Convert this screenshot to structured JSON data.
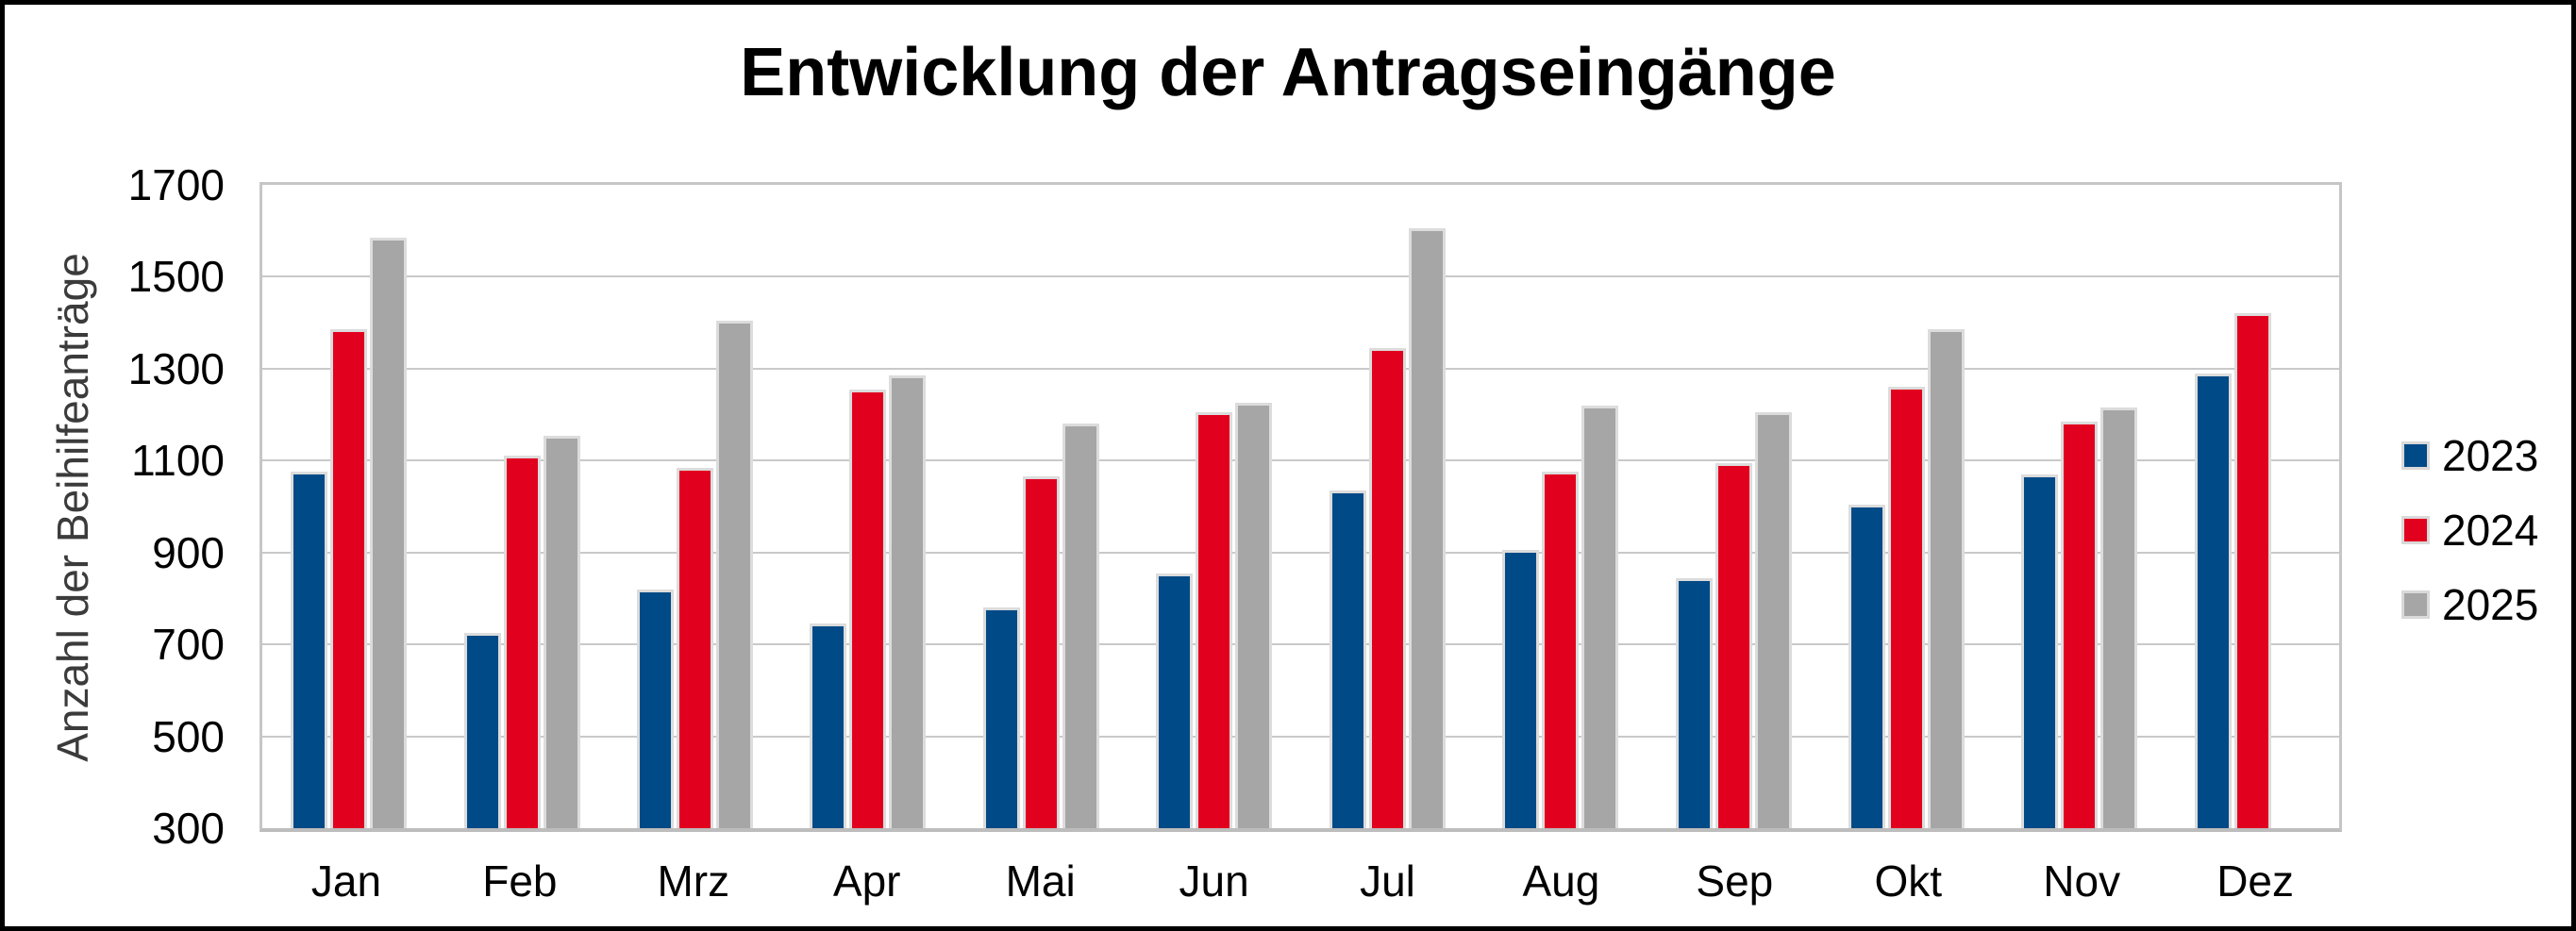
{
  "title": "Entwicklung der Antragseingänge",
  "y_axis": {
    "label": "Anzahl der Beihilfeanträge",
    "ticks": [
      1700,
      1500,
      1300,
      1100,
      900,
      700,
      500,
      300
    ],
    "min": 300,
    "max": 1700
  },
  "legend": {
    "position": "right",
    "items": [
      {
        "label": "2023",
        "color": "#004a87"
      },
      {
        "label": "2024",
        "color": "#e2001f"
      },
      {
        "label": "2025",
        "color": "#a6a6a6"
      }
    ]
  },
  "chart_data": {
    "type": "bar",
    "title": "Entwicklung der Antragseingänge",
    "xlabel": "",
    "ylabel": "Anzahl der Beihilfeanträge",
    "ylim": [
      300,
      1700
    ],
    "grid": true,
    "legend_position": "right",
    "categories": [
      "Jan",
      "Feb",
      "Mrz",
      "Apr",
      "Mai",
      "Jun",
      "Jul",
      "Aug",
      "Sep",
      "Okt",
      "Nov",
      "Dez"
    ],
    "series": [
      {
        "name": "2023",
        "color": "#004a87",
        "values": [
          1075,
          725,
          820,
          745,
          780,
          855,
          1035,
          905,
          845,
          1005,
          1070,
          1290
        ]
      },
      {
        "name": "2024",
        "color": "#e2001f",
        "values": [
          1385,
          1110,
          1085,
          1255,
          1065,
          1205,
          1345,
          1075,
          1095,
          1260,
          1185,
          1420
        ]
      },
      {
        "name": "2025",
        "color": "#a6a6a6",
        "values": [
          1585,
          1155,
          1405,
          1285,
          1180,
          1225,
          1605,
          1220,
          1205,
          1385,
          1215,
          null
        ]
      }
    ]
  }
}
